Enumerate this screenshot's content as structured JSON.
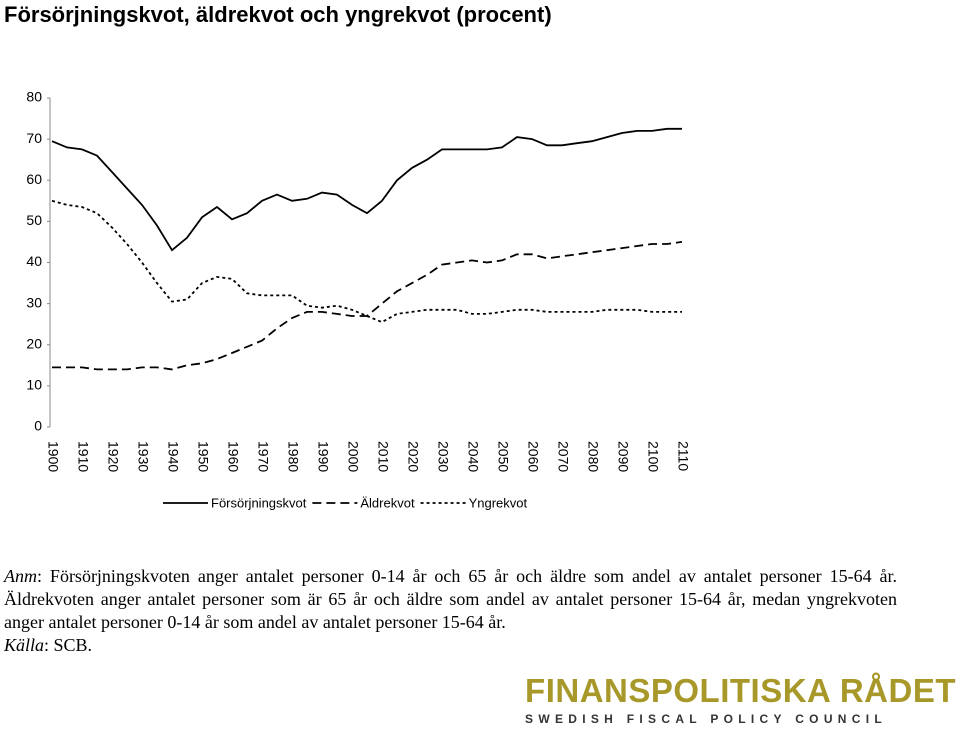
{
  "chart_data": {
    "type": "line",
    "title": "Försörjningskvot, äldrekvot och yngrekvot (procent)",
    "x": [
      1900,
      1905,
      1910,
      1915,
      1920,
      1925,
      1930,
      1935,
      1940,
      1945,
      1950,
      1955,
      1960,
      1965,
      1970,
      1975,
      1980,
      1985,
      1990,
      1995,
      2000,
      2005,
      2010,
      2015,
      2020,
      2025,
      2030,
      2035,
      2040,
      2045,
      2050,
      2055,
      2060,
      2065,
      2070,
      2075,
      2080,
      2085,
      2090,
      2095,
      2100,
      2105,
      2110
    ],
    "series": [
      {
        "name": "Försörjningskvot",
        "color": "#000000",
        "dash": "solid",
        "values": [
          69.5,
          68,
          67.5,
          66,
          62,
          58,
          54,
          49,
          43,
          46,
          51,
          53.5,
          50.5,
          52,
          55,
          56.5,
          55,
          55.5,
          57,
          56.5,
          54,
          52,
          55,
          60,
          63,
          65,
          67.5,
          67.5,
          67.5,
          67.5,
          68,
          70.5,
          70,
          68.5,
          68.5,
          69,
          69.5,
          70.5,
          71.5,
          72,
          72,
          72.5,
          72.5
        ]
      },
      {
        "name": "Äldrekvot",
        "color": "#000000",
        "dash": "dashed",
        "values": [
          14.5,
          14.5,
          14.5,
          14,
          14,
          14,
          14.5,
          14.5,
          14,
          15,
          15.5,
          16.5,
          18,
          19.5,
          21,
          24,
          26.5,
          28,
          28,
          27.5,
          27,
          27,
          30,
          33,
          35,
          37,
          39.5,
          40,
          40.5,
          40,
          40.5,
          42,
          42,
          41,
          41.5,
          42,
          42.5,
          43,
          43.5,
          44,
          44.5,
          44.5,
          45
        ]
      },
      {
        "name": "Yngrekvot",
        "color": "#000000",
        "dash": "dotted",
        "values": [
          55,
          54,
          53.5,
          52,
          48.5,
          44.5,
          40,
          35,
          30.5,
          31,
          35,
          36.5,
          36,
          32.5,
          32,
          32,
          32,
          29.5,
          29,
          29.5,
          28.5,
          27,
          25.5,
          27.5,
          28,
          28.5,
          28.5,
          28.5,
          27.5,
          27.5,
          28,
          28.5,
          28.5,
          28,
          28,
          28,
          28,
          28.5,
          28.5,
          28.5,
          28,
          28,
          28
        ]
      }
    ],
    "xlim": [
      1900,
      2110
    ],
    "xticks": [
      1900,
      1910,
      1920,
      1930,
      1940,
      1950,
      1960,
      1970,
      1980,
      1990,
      2000,
      2010,
      2020,
      2030,
      2040,
      2050,
      2060,
      2070,
      2080,
      2090,
      2100,
      2110
    ],
    "ylim": [
      0,
      80
    ],
    "yticks": [
      0,
      10,
      20,
      30,
      40,
      50,
      60,
      70,
      80
    ],
    "grid": false,
    "legend": "bottom"
  },
  "note": {
    "label": "Anm",
    "text": ": Försörjningskvoten anger antalet personer 0-14 år och 65 år och äldre som andel av antalet personer 15-64 år. Äldrekvoten anger antalet personer som är 65 år och äldre som andel av antalet personer 15-64 år, medan yngrekvoten anger antalet personer 0-14 år som andel av antalet personer 15-64 år."
  },
  "source": {
    "label": "Källa",
    "text": ": SCB."
  },
  "logo": {
    "name": "FINANSPOLITISKA RÅDET",
    "subtitle": "SWEDISH FISCAL POLICY COUNCIL"
  }
}
